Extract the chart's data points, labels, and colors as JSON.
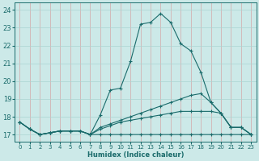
{
  "xlabel": "Humidex (Indice chaleur)",
  "xlim": [
    -0.5,
    23.5
  ],
  "ylim": [
    16.6,
    24.4
  ],
  "yticks": [
    17,
    18,
    19,
    20,
    21,
    22,
    23,
    24
  ],
  "xticks": [
    0,
    1,
    2,
    3,
    4,
    5,
    6,
    7,
    8,
    9,
    10,
    11,
    12,
    13,
    14,
    15,
    16,
    17,
    18,
    19,
    20,
    21,
    22,
    23
  ],
  "bg_color": "#cce9e8",
  "grid_color": "#aad4d2",
  "line_color": "#1a6b6b",
  "lines": [
    [
      17.7,
      17.3,
      17.0,
      17.1,
      17.2,
      17.2,
      17.2,
      17.0,
      18.1,
      19.5,
      19.6,
      21.1,
      23.2,
      23.3,
      23.8,
      23.3,
      22.1,
      21.7,
      20.5,
      18.8,
      18.2,
      17.4,
      17.4,
      17.0
    ],
    [
      17.7,
      17.3,
      17.0,
      17.1,
      17.2,
      17.2,
      17.2,
      17.0,
      17.4,
      17.6,
      17.8,
      18.0,
      18.2,
      18.4,
      18.6,
      18.8,
      19.0,
      19.2,
      19.3,
      18.8,
      18.2,
      17.4,
      17.4,
      17.0
    ],
    [
      17.7,
      17.3,
      17.0,
      17.1,
      17.2,
      17.2,
      17.2,
      17.0,
      17.3,
      17.5,
      17.7,
      17.8,
      17.9,
      18.0,
      18.1,
      18.2,
      18.3,
      18.3,
      18.3,
      18.3,
      18.2,
      17.4,
      17.4,
      17.0
    ],
    [
      17.7,
      17.3,
      17.0,
      17.1,
      17.2,
      17.2,
      17.2,
      17.0,
      17.0,
      17.0,
      17.0,
      17.0,
      17.0,
      17.0,
      17.0,
      17.0,
      17.0,
      17.0,
      17.0,
      17.0,
      17.0,
      17.0,
      17.0,
      17.0
    ]
  ]
}
